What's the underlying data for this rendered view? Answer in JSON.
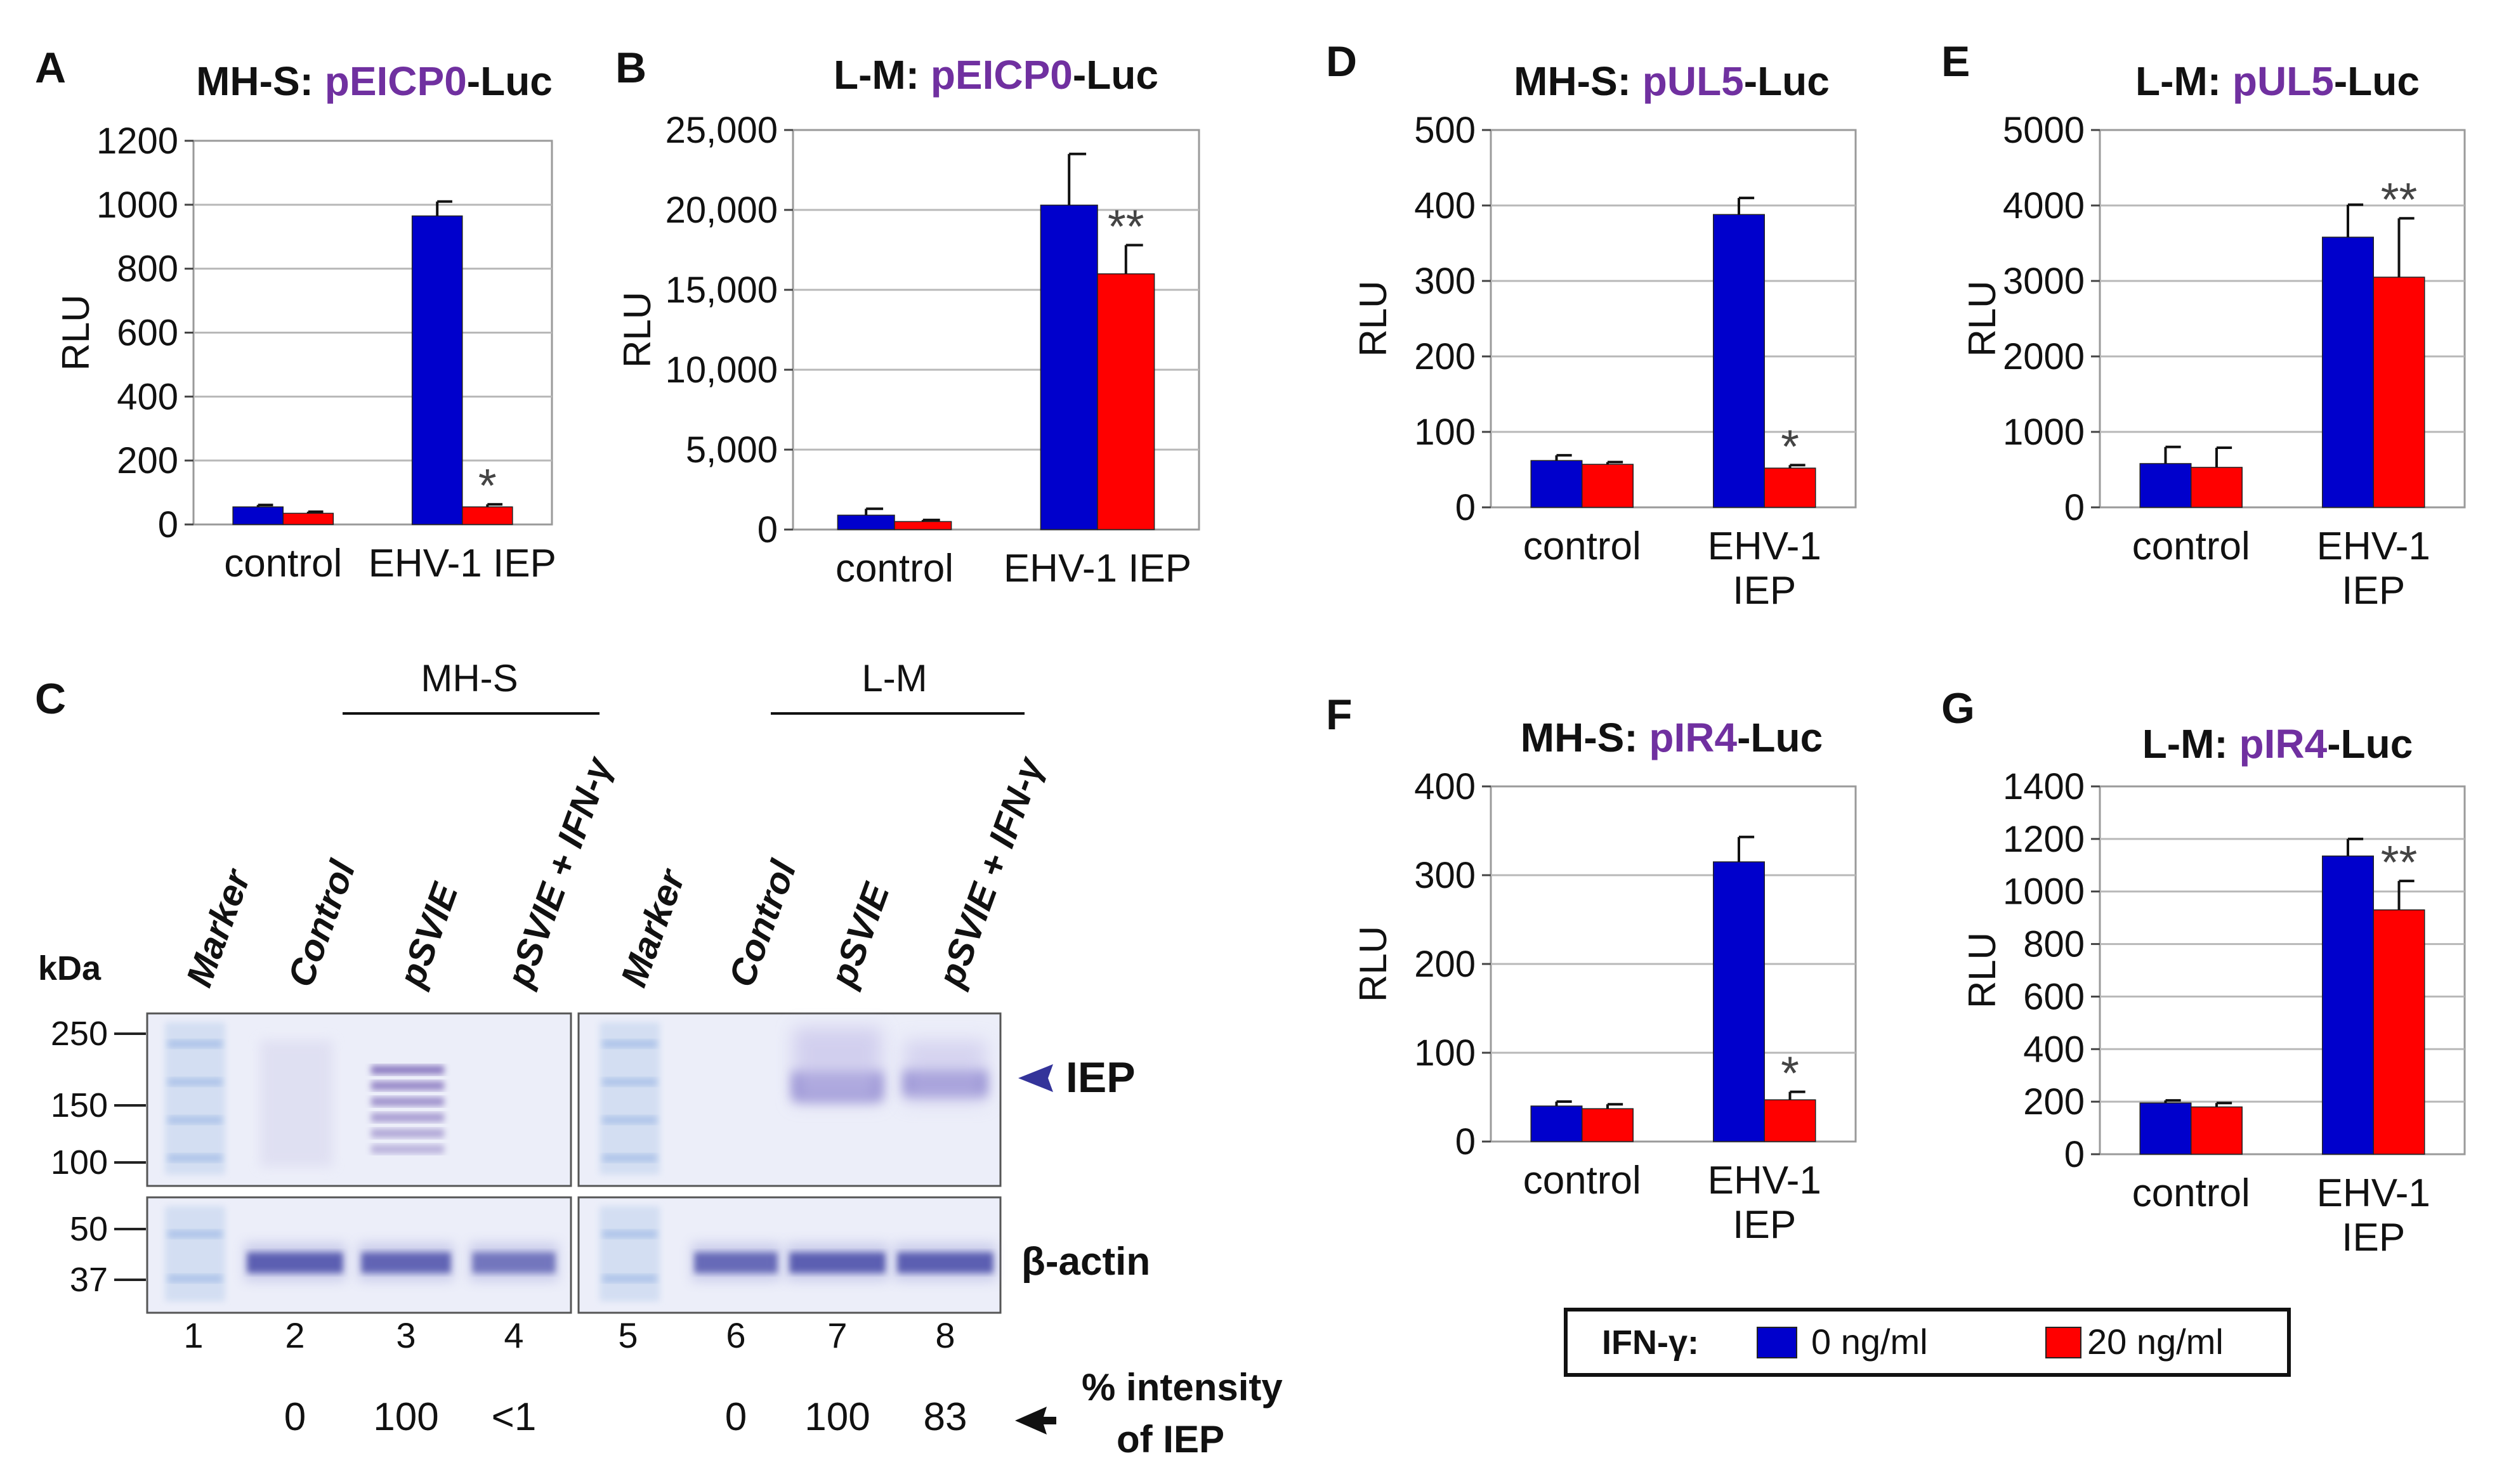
{
  "colors": {
    "blue": "#0000cc",
    "red": "#ff0000",
    "accent": "#7030a0",
    "text": "#111111",
    "frame": "#9a9a9a"
  },
  "charts": [
    {
      "id": "A",
      "letter": "A",
      "type": "bar",
      "title_prefix": "MH-S: ",
      "title_accent": "pEICP0",
      "title_suffix": "-Luc",
      "ylabel": "RLU",
      "ylim": [
        0,
        1200
      ],
      "yticks": [
        0,
        200,
        400,
        600,
        800,
        1000,
        1200
      ],
      "ytick_labels": [
        "0",
        "200",
        "400",
        "600",
        "800",
        "1000",
        "1200"
      ],
      "categories": [
        [
          "control"
        ],
        [
          "EHV-1 IEP"
        ]
      ],
      "series": [
        {
          "name": "0 ng/ml",
          "values": [
            55,
            965
          ],
          "errors": [
            6,
            45
          ]
        },
        {
          "name": "20 ng/ml",
          "values": [
            35,
            55
          ],
          "errors": [
            5,
            8
          ]
        }
      ],
      "annotations": [
        {
          "category": 1,
          "series": 1,
          "text": "*"
        }
      ]
    },
    {
      "id": "B",
      "letter": "B",
      "type": "bar",
      "title_prefix": "L-M: ",
      "title_accent": "pEICP0",
      "title_suffix": "-Luc",
      "ylabel": "RLU",
      "ylim": [
        0,
        25000
      ],
      "yticks": [
        0,
        5000,
        10000,
        15000,
        20000,
        25000
      ],
      "ytick_labels": [
        "0",
        "5,000",
        "10,000",
        "15,000",
        "20,000",
        "25,000"
      ],
      "categories": [
        [
          "control"
        ],
        [
          "EHV-1 IEP"
        ]
      ],
      "series": [
        {
          "name": "0 ng/ml",
          "values": [
            900,
            20300
          ],
          "errors": [
            400,
            3200
          ]
        },
        {
          "name": "20 ng/ml",
          "values": [
            500,
            16000
          ],
          "errors": [
            100,
            1800
          ]
        }
      ],
      "annotations": [
        {
          "category": 1,
          "series": 1,
          "text": "**"
        }
      ]
    },
    {
      "id": "D",
      "letter": "D",
      "type": "bar",
      "title_prefix": "MH-S: ",
      "title_accent": "pUL5",
      "title_suffix": "-Luc",
      "ylabel": "RLU",
      "ylim": [
        0,
        500
      ],
      "yticks": [
        0,
        100,
        200,
        300,
        400,
        500
      ],
      "ytick_labels": [
        "0",
        "100",
        "200",
        "300",
        "400",
        "500"
      ],
      "categories": [
        [
          "control"
        ],
        [
          "EHV-1",
          "IEP"
        ]
      ],
      "series": [
        {
          "name": "0 ng/ml",
          "values": [
            62,
            388
          ],
          "errors": [
            7,
            22
          ]
        },
        {
          "name": "20 ng/ml",
          "values": [
            57,
            52
          ],
          "errors": [
            3,
            4
          ]
        }
      ],
      "annotations": [
        {
          "category": 1,
          "series": 1,
          "text": "*"
        }
      ]
    },
    {
      "id": "E",
      "letter": "E",
      "type": "bar",
      "title_prefix": "L-M: ",
      "title_accent": "pUL5",
      "title_suffix": "-Luc",
      "ylabel": "RLU",
      "ylim": [
        0,
        5000
      ],
      "yticks": [
        0,
        1000,
        2000,
        3000,
        4000,
        5000
      ],
      "ytick_labels": [
        "0",
        "1000",
        "2000",
        "3000",
        "4000",
        "5000"
      ],
      "categories": [
        [
          "control"
        ],
        [
          "EHV-1",
          "IEP"
        ]
      ],
      "series": [
        {
          "name": "0 ng/ml",
          "values": [
            580,
            3580
          ],
          "errors": [
            220,
            430
          ]
        },
        {
          "name": "20 ng/ml",
          "values": [
            530,
            3050
          ],
          "errors": [
            260,
            780
          ]
        }
      ],
      "annotations": [
        {
          "category": 1,
          "series": 1,
          "text": "**"
        }
      ]
    },
    {
      "id": "F",
      "letter": "F",
      "type": "bar",
      "title_prefix": "MH-S: ",
      "title_accent": "pIR4",
      "title_suffix": "-Luc",
      "ylabel": "RLU",
      "ylim": [
        0,
        400
      ],
      "yticks": [
        0,
        100,
        200,
        300,
        400
      ],
      "ytick_labels": [
        "0",
        "100",
        "200",
        "300",
        "400"
      ],
      "categories": [
        [
          "control"
        ],
        [
          "EHV-1",
          "IEP"
        ]
      ],
      "series": [
        {
          "name": "0 ng/ml",
          "values": [
            40,
            315
          ],
          "errors": [
            5,
            28
          ]
        },
        {
          "name": "20 ng/ml",
          "values": [
            37,
            47
          ],
          "errors": [
            5,
            9
          ]
        }
      ],
      "annotations": [
        {
          "category": 1,
          "series": 1,
          "text": "*"
        }
      ]
    },
    {
      "id": "G",
      "letter": "G",
      "type": "bar",
      "title_prefix": "L-M: ",
      "title_accent": "pIR4",
      "title_suffix": "-Luc",
      "ylabel": "RLU",
      "ylim": [
        0,
        1400
      ],
      "yticks": [
        0,
        200,
        400,
        600,
        800,
        1000,
        1200,
        1400
      ],
      "ytick_labels": [
        "0",
        "200",
        "400",
        "600",
        "800",
        "1000",
        "1200",
        "1400"
      ],
      "categories": [
        [
          "control"
        ],
        [
          "EHV-1",
          "IEP"
        ]
      ],
      "series": [
        {
          "name": "0 ng/ml",
          "values": [
            195,
            1135
          ],
          "errors": [
            10,
            65
          ]
        },
        {
          "name": "20 ng/ml",
          "values": [
            180,
            930
          ],
          "errors": [
            15,
            110
          ]
        }
      ],
      "annotations": [
        {
          "category": 1,
          "series": 1,
          "text": "**"
        }
      ]
    }
  ],
  "legend": {
    "label": "IFN-γ:",
    "entries": [
      "0 ng/ml",
      "20 ng/ml"
    ]
  },
  "blot": {
    "letter": "C",
    "group_mhs": "MH-S",
    "group_lm": "L-M",
    "lane_labels": [
      "Marker",
      "Control",
      "pSVIE",
      "pSVIE + IFN-γ",
      "Marker",
      "Control",
      "pSVIE",
      "pSVIE + IFN-γ"
    ],
    "kda_label": "kDa",
    "markers": [
      "250",
      "150",
      "100",
      "50",
      "37"
    ],
    "iep_label": "IEP",
    "actin_label": "β-actin",
    "lane_numbers": [
      "1",
      "2",
      "3",
      "4",
      "5",
      "6",
      "7",
      "8"
    ],
    "percent_values": [
      "0",
      "100",
      "<1",
      "0",
      "100",
      "83"
    ],
    "percent_label_line1": "% intensity",
    "percent_label_line2": "of IEP"
  },
  "chart_data": [
    {
      "type": "bar",
      "title": "MH-S: pEICP0-Luc",
      "ylabel": "RLU",
      "categories": [
        "control",
        "EHV-1 IEP"
      ],
      "series": [
        {
          "name": "0 ng/ml",
          "values": [
            55,
            965
          ]
        },
        {
          "name": "20 ng/ml",
          "values": [
            35,
            55
          ]
        }
      ],
      "ylim": [
        0,
        1200
      ]
    },
    {
      "type": "bar",
      "title": "L-M: pEICP0-Luc",
      "ylabel": "RLU",
      "categories": [
        "control",
        "EHV-1 IEP"
      ],
      "series": [
        {
          "name": "0 ng/ml",
          "values": [
            900,
            20300
          ]
        },
        {
          "name": "20 ng/ml",
          "values": [
            500,
            16000
          ]
        }
      ],
      "ylim": [
        0,
        25000
      ]
    },
    {
      "type": "bar",
      "title": "MH-S: pUL5-Luc",
      "ylabel": "RLU",
      "categories": [
        "control",
        "EHV-1 IEP"
      ],
      "series": [
        {
          "name": "0 ng/ml",
          "values": [
            62,
            388
          ]
        },
        {
          "name": "20 ng/ml",
          "values": [
            57,
            52
          ]
        }
      ],
      "ylim": [
        0,
        500
      ]
    },
    {
      "type": "bar",
      "title": "L-M: pUL5-Luc",
      "ylabel": "RLU",
      "categories": [
        "control",
        "EHV-1 IEP"
      ],
      "series": [
        {
          "name": "0 ng/ml",
          "values": [
            580,
            3580
          ]
        },
        {
          "name": "20 ng/ml",
          "values": [
            530,
            3050
          ]
        }
      ],
      "ylim": [
        0,
        5000
      ]
    },
    {
      "type": "bar",
      "title": "MH-S: pIR4-Luc",
      "ylabel": "RLU",
      "categories": [
        "control",
        "EHV-1 IEP"
      ],
      "series": [
        {
          "name": "0 ng/ml",
          "values": [
            40,
            315
          ]
        },
        {
          "name": "20 ng/ml",
          "values": [
            37,
            47
          ]
        }
      ],
      "ylim": [
        0,
        400
      ]
    },
    {
      "type": "bar",
      "title": "L-M: pIR4-Luc",
      "ylabel": "RLU",
      "categories": [
        "control",
        "EHV-1 IEP"
      ],
      "series": [
        {
          "name": "0 ng/ml",
          "values": [
            195,
            1135
          ]
        },
        {
          "name": "20 ng/ml",
          "values": [
            180,
            930
          ]
        }
      ],
      "ylim": [
        0,
        1400
      ]
    }
  ]
}
